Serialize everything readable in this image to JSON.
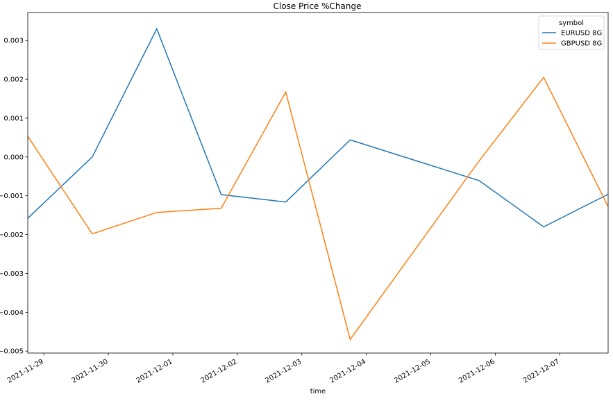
{
  "chart_data": {
    "type": "line",
    "title": "Close Price %Change",
    "xlabel": "time",
    "ylabel": "",
    "x": [
      "2021-11-28T18:00",
      "2021-11-29T18:00",
      "2021-11-30T18:00",
      "2021-12-01T18:00",
      "2021-12-02T18:00",
      "2021-12-03T18:00",
      "2021-12-05T18:00",
      "2021-12-06T18:00",
      "2021-12-07T18:00"
    ],
    "xlim": [
      "2021-11-28T18:00",
      "2021-12-07T18:00"
    ],
    "ylim": [
      -0.00505,
      0.00372
    ],
    "xticks": [
      "2021-11-29",
      "2021-11-30",
      "2021-12-01",
      "2021-12-02",
      "2021-12-03",
      "2021-12-04",
      "2021-12-05",
      "2021-12-06",
      "2021-12-07"
    ],
    "yticks": [
      -0.005,
      -0.004,
      -0.003,
      -0.002,
      -0.001,
      0.0,
      0.001,
      0.002,
      0.003
    ],
    "ytick_labels": [
      "−0.005",
      "−0.004",
      "−0.003",
      "−0.002",
      "−0.001",
      "0.000",
      "0.001",
      "0.002",
      "0.003"
    ],
    "series": [
      {
        "name": "EURUSD 8G",
        "color": "#1f77b4",
        "values": [
          -0.00158,
          0.0,
          0.0033,
          -0.00097,
          -0.00116,
          0.00044,
          -0.00061,
          -0.0018,
          -0.00096
        ]
      },
      {
        "name": "GBPUSD 8G",
        "color": "#ff7f0e",
        "values": [
          0.00053,
          -0.00198,
          -0.00143,
          -0.00132,
          0.00167,
          -0.0047,
          -0.0001,
          0.00205,
          -0.00128
        ]
      }
    ],
    "legend": {
      "title": "symbol",
      "position": "top-right"
    },
    "grid": false
  }
}
